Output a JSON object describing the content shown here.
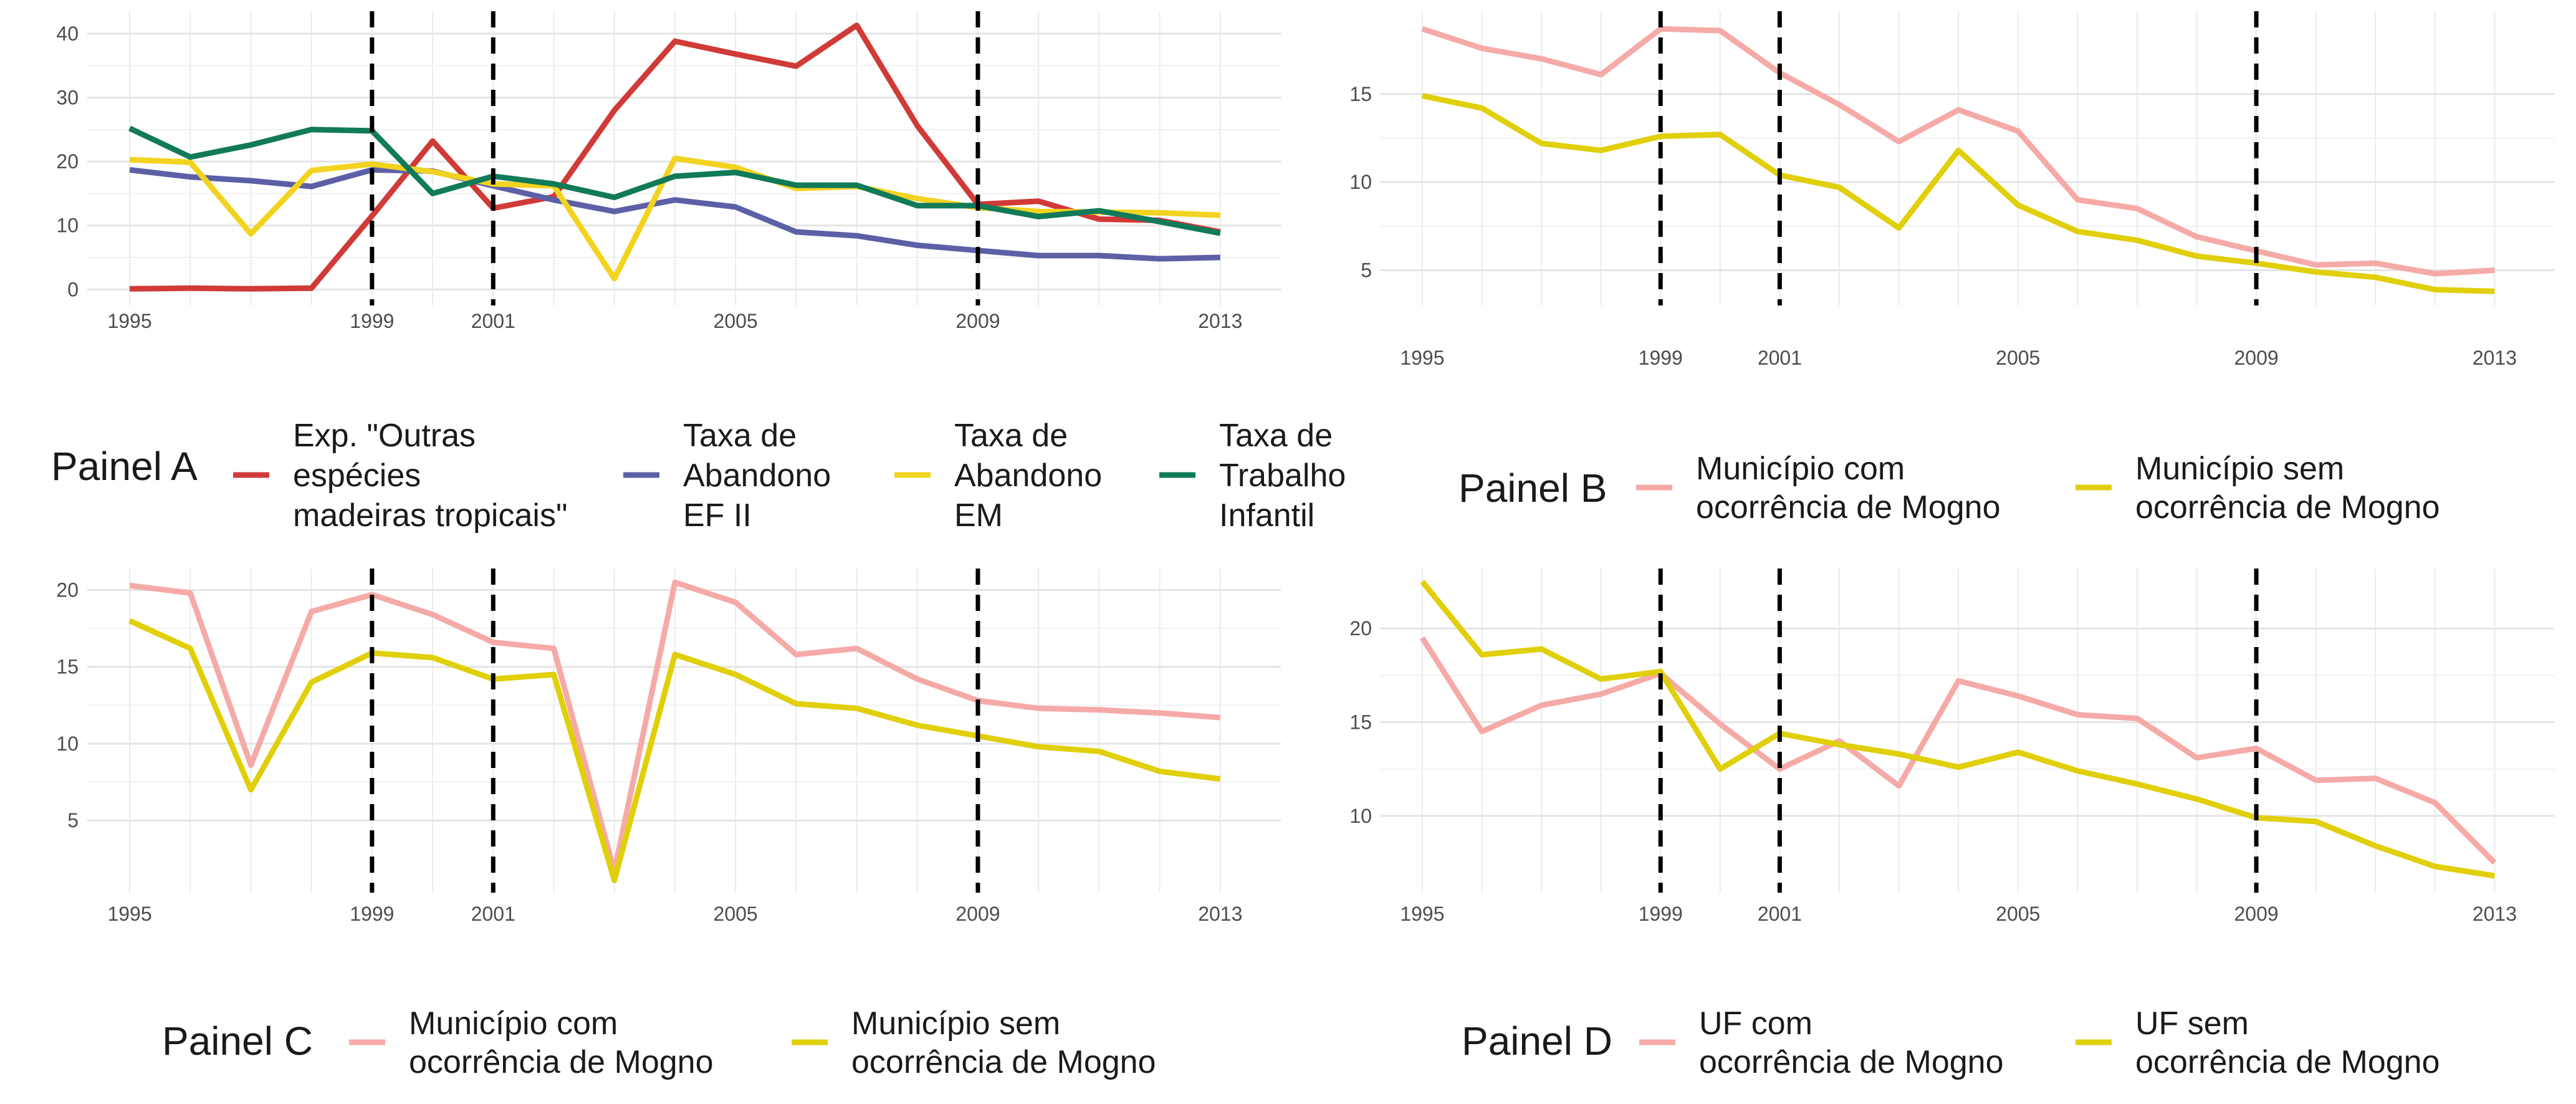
{
  "chart_data": [
    {
      "type": "line",
      "panel": "A",
      "legend_title": "Painel A",
      "legend_position": "bottom",
      "grid": true,
      "x": [
        1995,
        1996,
        1997,
        1998,
        1999,
        2000,
        2001,
        2002,
        2003,
        2004,
        2005,
        2006,
        2007,
        2008,
        2009,
        2010,
        2011,
        2012,
        2013
      ],
      "xticks": [
        1995,
        1999,
        2001,
        2005,
        2009,
        2013
      ],
      "xlim": [
        1994.3,
        2014.0
      ],
      "yticks": [
        0,
        10,
        20,
        30,
        40
      ],
      "ylim": [
        -2.5,
        43.5
      ],
      "vlines": [
        1999,
        2001,
        2009
      ],
      "series": [
        {
          "name": "Exp. \"Outras espécies madeiras tropicais\"",
          "legend_lines": [
            "Exp. \"Outras",
            "espécies",
            "madeiras tropicais\""
          ],
          "color": "#d03a37",
          "values": [
            0.1,
            0.2,
            0.1,
            0.2,
            11.5,
            23.2,
            12.7,
            14.5,
            28.0,
            38.8,
            36.8,
            34.9,
            41.3,
            25.6,
            13.3,
            13.8,
            11.0,
            10.8,
            9.0
          ]
        },
        {
          "name": "Taxa de Abandono EF II",
          "legend_lines": [
            "Taxa de",
            "Abandono",
            "EF II"
          ],
          "color": "#5b60a6",
          "values": [
            18.7,
            17.6,
            17.0,
            16.1,
            18.7,
            18.5,
            16.2,
            14.0,
            12.2,
            14.0,
            12.9,
            9.0,
            8.4,
            6.9,
            6.1,
            5.3,
            5.3,
            4.8,
            5.0
          ]
        },
        {
          "name": "Taxa de Abandono EM",
          "legend_lines": [
            "Taxa de",
            "Abandono",
            "EM"
          ],
          "color": "#f2d31f",
          "values": [
            20.3,
            19.9,
            8.7,
            18.6,
            19.6,
            18.4,
            16.5,
            16.2,
            1.7,
            20.5,
            19.1,
            15.8,
            16.1,
            14.2,
            12.8,
            12.2,
            12.1,
            12.0,
            11.6
          ]
        },
        {
          "name": "Taxa de Trabalho Infantil",
          "legend_lines": [
            "Taxa de",
            "Trabalho",
            "Infantil"
          ],
          "color": "#117a59",
          "values": [
            25.2,
            20.7,
            22.6,
            25.0,
            24.8,
            15.0,
            17.7,
            16.5,
            14.4,
            17.7,
            18.3,
            16.3,
            16.3,
            13.1,
            13.1,
            11.4,
            12.3,
            10.6,
            8.8
          ]
        }
      ]
    },
    {
      "type": "line",
      "panel": "B",
      "legend_title": "Painel B",
      "legend_position": "bottom",
      "grid": true,
      "x": [
        1995,
        1996,
        1997,
        1998,
        1999,
        2000,
        2001,
        2002,
        2003,
        2004,
        2005,
        2006,
        2007,
        2008,
        2009,
        2010,
        2011,
        2012,
        2013
      ],
      "xticks": [
        1995,
        1999,
        2001,
        2005,
        2009,
        2013
      ],
      "xlim": [
        1994.3,
        2014.0
      ],
      "yticks": [
        5,
        10,
        15
      ],
      "ylim": [
        3.0,
        19.7
      ],
      "vlines": [
        1999,
        2001,
        2009
      ],
      "series": [
        {
          "name": "Município com ocorrência de Mogno",
          "legend_lines": [
            "Município com",
            "ocorrência de Mogno"
          ],
          "color": "#f5aaa7",
          "values": [
            18.7,
            17.6,
            17.0,
            16.1,
            18.7,
            18.6,
            16.2,
            14.4,
            12.3,
            14.1,
            12.9,
            9.0,
            8.5,
            6.9,
            6.1,
            5.3,
            5.4,
            4.8,
            5.0
          ]
        },
        {
          "name": "Município sem ocorrência de Mogno",
          "legend_lines": [
            "Município sem",
            "ocorrência de Mogno"
          ],
          "color": "#e0cf09",
          "values": [
            14.9,
            14.2,
            12.2,
            11.8,
            12.6,
            12.7,
            10.4,
            9.7,
            7.4,
            11.8,
            8.7,
            7.2,
            6.7,
            5.8,
            5.4,
            4.9,
            4.6,
            3.9,
            3.8
          ]
        }
      ]
    },
    {
      "type": "line",
      "panel": "C",
      "legend_title": "Painel C",
      "legend_position": "bottom",
      "grid": true,
      "x": [
        1995,
        1996,
        1997,
        1998,
        1999,
        2000,
        2001,
        2002,
        2003,
        2004,
        2005,
        2006,
        2007,
        2008,
        2009,
        2010,
        2011,
        2012,
        2013
      ],
      "xticks": [
        1995,
        1999,
        2001,
        2005,
        2009,
        2013
      ],
      "xlim": [
        1994.3,
        2014.0
      ],
      "yticks": [
        5,
        10,
        15,
        20
      ],
      "ylim": [
        0.3,
        21.4
      ],
      "vlines": [
        1999,
        2001,
        2009
      ],
      "series": [
        {
          "name": "Município com ocorrência de Mogno",
          "legend_lines": [
            "Município com",
            "ocorrência de Mogno"
          ],
          "color": "#f5aaa7",
          "values": [
            20.3,
            19.8,
            8.6,
            18.6,
            19.7,
            18.4,
            16.6,
            16.2,
            1.7,
            20.5,
            19.2,
            15.8,
            16.2,
            14.2,
            12.8,
            12.3,
            12.2,
            12.0,
            11.7
          ]
        },
        {
          "name": "Município sem ocorrência de Mogno",
          "legend_lines": [
            "Município sem",
            "ocorrência de Mogno"
          ],
          "color": "#e0cf09",
          "values": [
            18.0,
            16.2,
            7.0,
            14.0,
            15.9,
            15.6,
            14.2,
            14.5,
            1.1,
            15.8,
            14.5,
            12.6,
            12.3,
            11.2,
            10.5,
            9.8,
            9.5,
            8.2,
            7.7
          ]
        }
      ]
    },
    {
      "type": "line",
      "panel": "D",
      "legend_title": "Painel D",
      "legend_position": "bottom",
      "grid": true,
      "x": [
        1995,
        1996,
        1997,
        1998,
        1999,
        2000,
        2001,
        2002,
        2003,
        2004,
        2005,
        2006,
        2007,
        2008,
        2009,
        2010,
        2011,
        2012,
        2013
      ],
      "xticks": [
        1995,
        1999,
        2001,
        2005,
        2009,
        2013
      ],
      "xlim": [
        1994.3,
        2014.0
      ],
      "yticks": [
        10,
        15,
        20
      ],
      "ylim": [
        5.9,
        23.2
      ],
      "vlines": [
        1999,
        2001,
        2009
      ],
      "series": [
        {
          "name": "UF com ocorrência de Mogno",
          "legend_lines": [
            "UF com",
            "ocorrência de Mogno"
          ],
          "color": "#f5aaa7",
          "values": [
            19.5,
            14.5,
            15.9,
            16.5,
            17.6,
            14.9,
            12.5,
            14.0,
            11.6,
            17.2,
            16.4,
            15.4,
            15.2,
            13.1,
            13.6,
            11.9,
            12.0,
            10.7,
            7.5
          ]
        },
        {
          "name": "UF sem ocorrência de Mogno",
          "legend_lines": [
            "UF sem",
            "ocorrência de Mogno"
          ],
          "color": "#e0cf09",
          "values": [
            22.5,
            18.6,
            18.9,
            17.3,
            17.7,
            12.5,
            14.4,
            13.8,
            13.3,
            12.6,
            13.4,
            12.4,
            11.7,
            10.9,
            9.9,
            9.7,
            8.4,
            7.3,
            6.8
          ]
        }
      ]
    }
  ]
}
